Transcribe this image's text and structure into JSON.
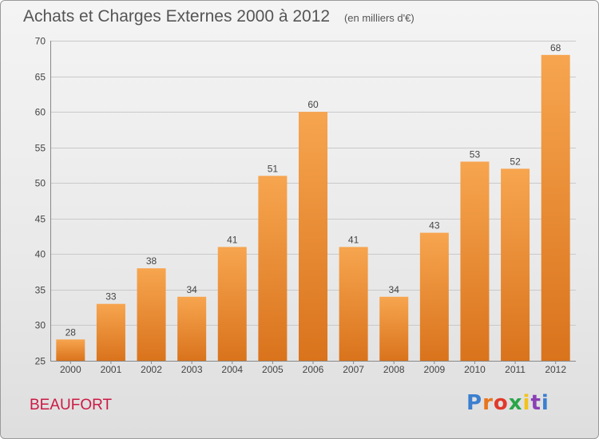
{
  "header": {
    "title": "Achats et Charges Externes 2000 à 2012",
    "unit": "(en milliers d'€)"
  },
  "footer": {
    "commune": "BEAUFORT",
    "logo_text": "Proxiti",
    "logo_colors": [
      "#3b7fd0",
      "#e8741c",
      "#e03a2a",
      "#2aa54a",
      "#f2c21b",
      "#8a3fb5",
      "#3b7fd0"
    ]
  },
  "colors": {
    "bar_top": "#f7a54f",
    "bar_bottom": "#d9731c",
    "grid": "#c9c9c9",
    "axis_text": "#444444"
  },
  "chart_data": {
    "type": "bar",
    "title": "Achats et Charges Externes 2000 à 2012",
    "xlabel": "",
    "ylabel": "",
    "categories": [
      "2000",
      "2001",
      "2002",
      "2003",
      "2004",
      "2005",
      "2006",
      "2007",
      "2008",
      "2009",
      "2010",
      "2011",
      "2012"
    ],
    "values": [
      28,
      33,
      38,
      34,
      41,
      51,
      60,
      41,
      34,
      43,
      53,
      52,
      68
    ],
    "ylim": [
      25,
      70
    ],
    "yticks": [
      25,
      30,
      35,
      40,
      45,
      50,
      55,
      60,
      65,
      70
    ],
    "grid": true,
    "data_labels": true
  }
}
